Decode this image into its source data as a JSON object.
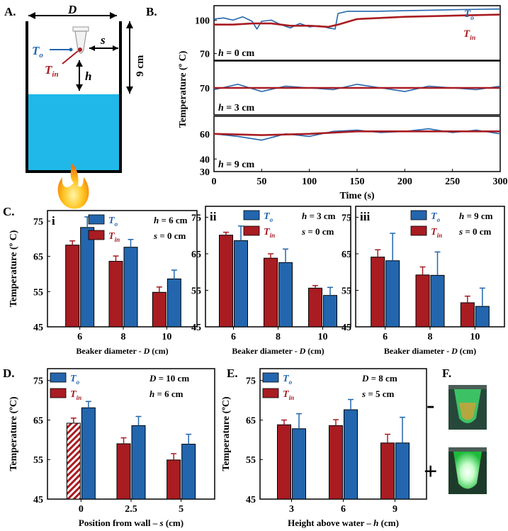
{
  "colors": {
    "red": "#a81c22",
    "blue": "#2366ae",
    "water": "#1fb8e8",
    "ink": "#000000"
  },
  "panel_labels": {
    "A": "A.",
    "B": "B.",
    "C": "C.",
    "D": "D.",
    "E": "E.",
    "F": "F."
  },
  "schematic": {
    "width_symbol": "D",
    "to_main": "T",
    "to_sub": "o",
    "tin_main": "T",
    "tin_sub": "in",
    "s_symbol": "s",
    "h_symbol": "h",
    "height_label": "9 cm",
    "icons": [
      "beaker-icon",
      "tube-icon",
      "flame-icon"
    ]
  },
  "photos": {
    "minus": "-",
    "plus": "+"
  },
  "chart_data": [
    {
      "id": "B",
      "type": "line",
      "xlabel": "Time (s)",
      "ylabel": "Temperature (º C)",
      "xlim": [
        0,
        300
      ],
      "xticks": [
        0,
        50,
        100,
        150,
        200,
        250,
        300
      ],
      "legend": {
        "to_main": "T",
        "to_sub": "o",
        "tin_main": "T",
        "tin_sub": "in"
      },
      "subplots": [
        {
          "label": "h = 0 cm",
          "h_value": "0 cm",
          "ylim": [
            64,
            113
          ],
          "yticks": [
            70,
            100
          ],
          "series": [
            {
              "name": "To",
              "color": "#2366ae",
              "x": [
                0,
                10,
                20,
                30,
                40,
                45,
                50,
                60,
                70,
                80,
                90,
                100,
                110,
                120,
                127,
                130,
                140,
                150,
                170,
                200,
                230,
                260,
                300
              ],
              "y": [
                101,
                102,
                100,
                103,
                99,
                92,
                99,
                100,
                96,
                93,
                97,
                94,
                95,
                93,
                92,
                106,
                108,
                108,
                108,
                108.5,
                109,
                109.5,
                110
              ]
            },
            {
              "name": "Tin",
              "color": "#a81c22",
              "x": [
                0,
                20,
                40,
                60,
                80,
                100,
                120,
                130,
                150,
                200,
                250,
                300
              ],
              "y": [
                96,
                96,
                97,
                97,
                95,
                95,
                94,
                96,
                101,
                103,
                104,
                105
              ]
            }
          ]
        },
        {
          "label": "h = 3 cm",
          "h_value": "3 cm",
          "ylim": [
            55,
            85
          ],
          "yticks": [
            70
          ],
          "series": [
            {
              "name": "To",
              "color": "#2366ae",
              "x": [
                0,
                25,
                50,
                75,
                100,
                125,
                150,
                175,
                200,
                225,
                250,
                275,
                300
              ],
              "y": [
                69,
                72,
                68,
                71,
                70,
                69,
                72,
                70,
                68,
                71,
                70,
                69,
                71
              ]
            },
            {
              "name": "Tin",
              "color": "#a81c22",
              "x": [
                0,
                300
              ],
              "y": [
                70,
                70
              ]
            }
          ]
        },
        {
          "label": "h = 9 cm",
          "h_value": "9 cm",
          "ylim": [
            30,
            74
          ],
          "yticks": [
            30,
            40,
            60
          ],
          "series": [
            {
              "name": "To",
              "color": "#2366ae",
              "x": [
                0,
                25,
                50,
                75,
                100,
                125,
                150,
                175,
                200,
                225,
                250,
                275,
                300
              ],
              "y": [
                60,
                58,
                55,
                60,
                58,
                62,
                63,
                61,
                62,
                64,
                61,
                63,
                60
              ]
            },
            {
              "name": "Tin",
              "color": "#a81c22",
              "x": [
                0,
                50,
                100,
                150,
                200,
                250,
                300
              ],
              "y": [
                60,
                59,
                60,
                62,
                62,
                62,
                62
              ]
            }
          ]
        }
      ]
    },
    {
      "id": "C-i",
      "roman": "i",
      "type": "bar",
      "xlabel_text": "Beaker diameter - ",
      "xlabel_symbol": "D",
      "xlabel_unit": " (cm)",
      "ylabel": "Temperature (º C)",
      "ylim": [
        45,
        78
      ],
      "yticks": [
        45,
        55,
        65,
        75
      ],
      "categories": [
        "6",
        "8",
        "10"
      ],
      "annotation": [
        "h = 6 cm",
        "s = 0 cm"
      ],
      "ann_sym": [
        "h",
        "s"
      ],
      "ann_val": [
        " = 6 cm",
        " = 0 cm"
      ],
      "series": [
        {
          "name": "Tin",
          "values": [
            68.2,
            63.6,
            54.8
          ],
          "errors": [
            1.2,
            1.5,
            1.5
          ]
        },
        {
          "name": "To",
          "values": [
            73.2,
            67.6,
            58.6
          ],
          "errors": [
            3.0,
            2.2,
            2.5
          ]
        }
      ]
    },
    {
      "id": "C-ii",
      "roman": "ii",
      "type": "bar",
      "xlabel_text": "Beaker diameter - ",
      "xlabel_symbol": "D",
      "xlabel_unit": " (cm)",
      "ylabel": "",
      "ylim": [
        45,
        78
      ],
      "yticks": [
        45,
        55,
        65,
        75
      ],
      "categories": [
        "6",
        "8",
        "10"
      ],
      "annotation": [
        "h = 3 cm",
        "s = 0 cm"
      ],
      "ann_sym": [
        "h",
        "s"
      ],
      "ann_val": [
        " = 3 cm",
        " = 0 cm"
      ],
      "series": [
        {
          "name": "Tin",
          "values": [
            70.1,
            63.8,
            55.6
          ],
          "errors": [
            0.8,
            1.2,
            0.7
          ]
        },
        {
          "name": "To",
          "values": [
            68.6,
            62.6,
            53.6
          ],
          "errors": [
            4.0,
            3.7,
            2.2
          ]
        }
      ]
    },
    {
      "id": "C-iii",
      "roman": "iii",
      "type": "bar",
      "xlabel_text": "Beaker diameter - ",
      "xlabel_symbol": "D",
      "xlabel_unit": " (cm)",
      "ylabel": "",
      "ylim": [
        45,
        78
      ],
      "yticks": [
        45,
        55,
        65,
        75
      ],
      "categories": [
        "6",
        "8",
        "10"
      ],
      "annotation": [
        "h = 9 cm",
        "s = 0 cm"
      ],
      "ann_sym": [
        "h",
        "s"
      ],
      "ann_val": [
        " = 9 cm",
        " = 0 cm"
      ],
      "series": [
        {
          "name": "Tin",
          "values": [
            64.1,
            59.2,
            51.6
          ],
          "errors": [
            2.0,
            2.2,
            1.8
          ]
        },
        {
          "name": "To",
          "values": [
            63.1,
            59.1,
            50.6
          ],
          "errors": [
            7.5,
            6.4,
            5.0
          ]
        }
      ]
    },
    {
      "id": "D",
      "type": "bar",
      "xlabel_text": "Position from wall – ",
      "xlabel_symbol": "s",
      "xlabel_unit": " (cm)",
      "ylabel": "Temperature (ºC)",
      "ylim": [
        45,
        78
      ],
      "yticks": [
        45,
        55,
        65,
        75
      ],
      "categories": [
        "0",
        "2.5",
        "5"
      ],
      "annotation": [
        "D = 10 cm",
        "h = 6 cm"
      ],
      "ann_sym": [
        "D",
        "h"
      ],
      "ann_val": [
        " = 10 cm",
        " = 6 cm"
      ],
      "hatched_first_tin": true,
      "series": [
        {
          "name": "Tin",
          "values": [
            64.2,
            59.0,
            54.9
          ],
          "errors": [
            1.3,
            1.5,
            1.6
          ]
        },
        {
          "name": "To",
          "values": [
            68.1,
            63.6,
            58.9
          ],
          "errors": [
            1.6,
            2.3,
            2.5
          ]
        }
      ]
    },
    {
      "id": "E",
      "type": "bar",
      "xlabel_text": "Height above water – ",
      "xlabel_symbol": "h",
      "xlabel_unit": " (cm)",
      "ylabel": "Temperature (ºC)",
      "ylim": [
        45,
        78
      ],
      "yticks": [
        45,
        55,
        65,
        75
      ],
      "categories": [
        "3",
        "6",
        "9"
      ],
      "annotation": [
        "D = 8 cm",
        "s = 5 cm"
      ],
      "ann_sym": [
        "D",
        "s"
      ],
      "ann_val": [
        " = 8 cm",
        " = 5 cm"
      ],
      "series": [
        {
          "name": "Tin",
          "values": [
            63.8,
            63.6,
            59.2
          ],
          "errors": [
            1.2,
            1.5,
            2.2
          ]
        },
        {
          "name": "To",
          "values": [
            62.8,
            67.6,
            59.2
          ],
          "errors": [
            3.8,
            2.6,
            6.5
          ]
        }
      ]
    }
  ]
}
